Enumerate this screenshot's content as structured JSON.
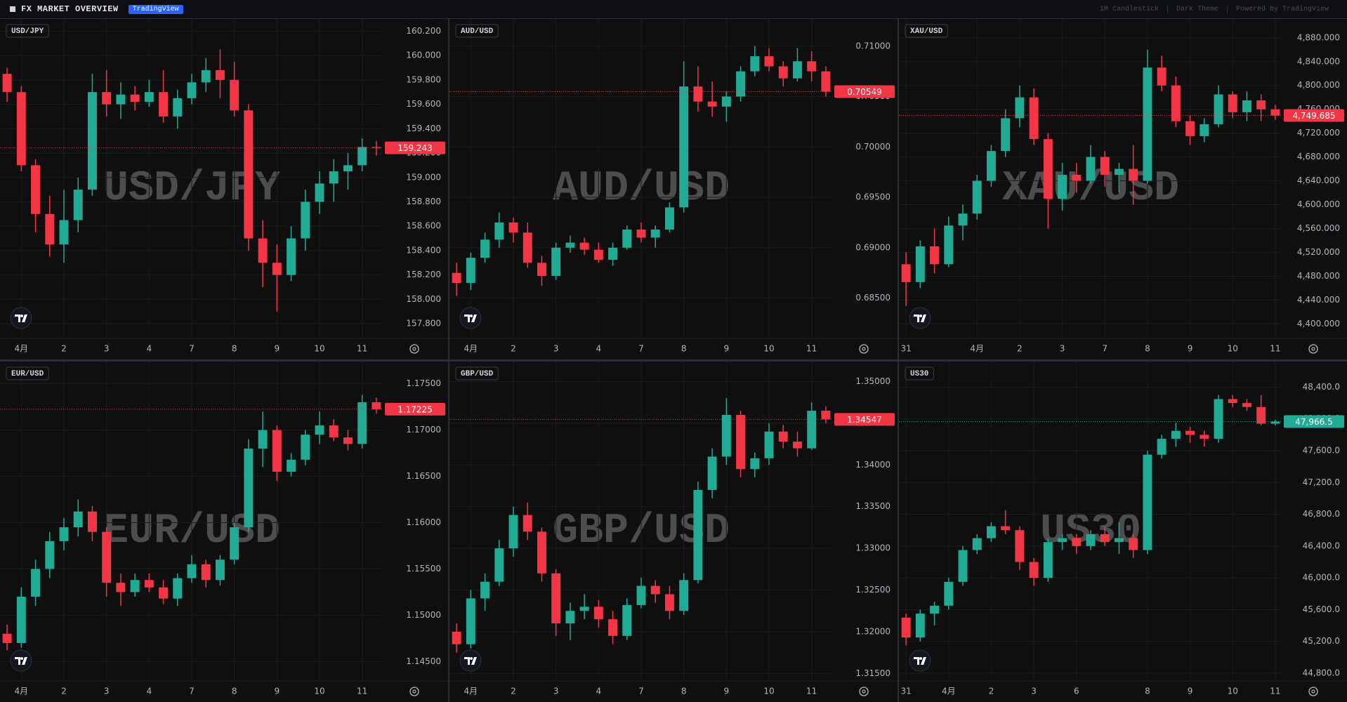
{
  "header": {
    "title": "FX MARKET OVERVIEW",
    "badge": "TradingView",
    "meta": [
      "1M Candlestick",
      "Dark Theme",
      "Powered by TradingView"
    ]
  },
  "chart_data": [
    {
      "type": "candlestick",
      "title": "USD/JPY",
      "up_color": "#22ab94",
      "down_color": "#f23645",
      "grid": true,
      "categories": [
        null,
        "4月",
        null,
        null,
        "2",
        null,
        null,
        "3",
        null,
        null,
        "4",
        null,
        null,
        "7",
        null,
        null,
        "8",
        null,
        null,
        "9",
        null,
        null,
        "10",
        null,
        null,
        "11",
        null
      ],
      "open": [
        159.85,
        159.7,
        159.1,
        158.7,
        158.45,
        158.65,
        158.9,
        159.7,
        159.6,
        159.68,
        159.62,
        159.7,
        159.5,
        159.65,
        159.78,
        159.88,
        159.8,
        159.55,
        158.5,
        158.3,
        158.2,
        158.5,
        158.8,
        158.95,
        159.05,
        159.1,
        159.25
      ],
      "high": [
        159.9,
        159.75,
        159.15,
        158.85,
        158.9,
        159.0,
        159.85,
        159.88,
        159.78,
        159.75,
        159.8,
        159.88,
        159.72,
        159.85,
        159.98,
        160.05,
        159.95,
        159.6,
        158.65,
        158.45,
        158.6,
        158.9,
        159.05,
        159.15,
        159.2,
        159.32,
        159.3
      ],
      "low": [
        159.62,
        159.05,
        158.55,
        158.35,
        158.3,
        158.55,
        158.85,
        159.5,
        159.48,
        159.55,
        159.58,
        159.45,
        159.4,
        159.6,
        159.7,
        159.65,
        159.5,
        158.4,
        158.1,
        157.9,
        158.15,
        158.4,
        158.7,
        158.8,
        158.9,
        159.05,
        159.18
      ],
      "close": [
        159.7,
        159.1,
        158.7,
        158.45,
        158.65,
        158.9,
        159.7,
        159.6,
        159.68,
        159.62,
        159.7,
        159.5,
        159.65,
        159.78,
        159.88,
        159.8,
        159.55,
        158.5,
        158.3,
        158.2,
        158.5,
        158.8,
        158.95,
        159.05,
        159.1,
        159.25,
        159.243
      ],
      "last_price": {
        "value": 159.243,
        "label": "159.243"
      },
      "ylim": [
        157.68,
        160.3
      ],
      "yticks": [
        {
          "value": 157.8,
          "label": "157.800"
        },
        {
          "value": 158.0,
          "label": "158.000"
        },
        {
          "value": 158.2,
          "label": "158.200"
        },
        {
          "value": 158.4,
          "label": "158.400"
        },
        {
          "value": 158.6,
          "label": "158.600"
        },
        {
          "value": 158.8,
          "label": "158.800"
        },
        {
          "value": 159.0,
          "label": "159.000"
        },
        {
          "value": 159.2,
          "label": "159.200"
        },
        {
          "value": 159.4,
          "label": "159.400"
        },
        {
          "value": 159.6,
          "label": "159.600"
        },
        {
          "value": 159.8,
          "label": "159.800"
        },
        {
          "value": 160.0,
          "label": "160.000"
        },
        {
          "value": 160.2,
          "label": "160.200"
        }
      ]
    },
    {
      "type": "candlestick",
      "title": "AUD/USD",
      "up_color": "#22ab94",
      "down_color": "#f23645",
      "grid": true,
      "categories": [
        null,
        "4月",
        null,
        null,
        "2",
        null,
        null,
        "3",
        null,
        null,
        "4",
        null,
        null,
        "7",
        null,
        null,
        "8",
        null,
        null,
        "9",
        null,
        null,
        "10",
        null,
        null,
        "11",
        null
      ],
      "open": [
        0.6875,
        0.6865,
        0.689,
        0.6908,
        0.6925,
        0.6915,
        0.6885,
        0.6872,
        0.69,
        0.6905,
        0.6898,
        0.6888,
        0.69,
        0.6918,
        0.691,
        0.6918,
        0.694,
        0.706,
        0.7045,
        0.704,
        0.705,
        0.7075,
        0.709,
        0.708,
        0.7068,
        0.7085,
        0.7075
      ],
      "high": [
        0.6885,
        0.6895,
        0.6915,
        0.6935,
        0.693,
        0.6925,
        0.6892,
        0.6905,
        0.6912,
        0.691,
        0.6905,
        0.6905,
        0.6922,
        0.6925,
        0.6922,
        0.6945,
        0.7085,
        0.708,
        0.7065,
        0.7055,
        0.708,
        0.71,
        0.7098,
        0.7085,
        0.7098,
        0.7095,
        0.708
      ],
      "low": [
        0.6852,
        0.6858,
        0.6885,
        0.69,
        0.6905,
        0.688,
        0.6862,
        0.6868,
        0.6895,
        0.6893,
        0.6885,
        0.6882,
        0.6898,
        0.6905,
        0.69,
        0.6915,
        0.6935,
        0.7035,
        0.703,
        0.7025,
        0.7045,
        0.707,
        0.7075,
        0.706,
        0.7065,
        0.7065,
        0.705
      ],
      "close": [
        0.6865,
        0.689,
        0.6908,
        0.6925,
        0.6915,
        0.6885,
        0.6872,
        0.69,
        0.6905,
        0.6898,
        0.6888,
        0.69,
        0.6918,
        0.691,
        0.6918,
        0.694,
        0.706,
        0.7045,
        0.704,
        0.705,
        0.7075,
        0.709,
        0.708,
        0.7068,
        0.7085,
        0.7075,
        0.70549
      ],
      "last_price": {
        "value": 0.70549,
        "label": "0.70549"
      },
      "ylim": [
        0.681,
        0.7127
      ],
      "yticks": [
        {
          "value": 0.685,
          "label": "0.68500"
        },
        {
          "value": 0.69,
          "label": "0.69000"
        },
        {
          "value": 0.695,
          "label": "0.69500"
        },
        {
          "value": 0.7,
          "label": "0.70000"
        },
        {
          "value": 0.705,
          "label": "0.70500"
        },
        {
          "value": 0.71,
          "label": "0.71000"
        }
      ]
    },
    {
      "type": "candlestick",
      "title": "XAU/USD",
      "up_color": "#22ab94",
      "down_color": "#f23645",
      "grid": true,
      "categories": [
        "31",
        null,
        null,
        null,
        null,
        "4月",
        null,
        null,
        "2",
        null,
        null,
        "3",
        null,
        null,
        "7",
        null,
        null,
        "8",
        null,
        null,
        "9",
        null,
        null,
        "10",
        null,
        null,
        "11"
      ],
      "open": [
        4500,
        4470,
        4530,
        4500,
        4565,
        4585,
        4640,
        4690,
        4745,
        4780,
        4710,
        4610,
        4650,
        4640,
        4680,
        4650,
        4660,
        4640,
        4830,
        4800,
        4740,
        4715,
        4735,
        4785,
        4755,
        4775,
        4760
      ],
      "high": [
        4520,
        4540,
        4560,
        4580,
        4600,
        4650,
        4700,
        4760,
        4800,
        4795,
        4720,
        4670,
        4670,
        4700,
        4690,
        4670,
        4700,
        4860,
        4850,
        4815,
        4750,
        4745,
        4800,
        4790,
        4790,
        4785,
        4768
      ],
      "low": [
        4430,
        4460,
        4485,
        4495,
        4540,
        4575,
        4630,
        4680,
        4730,
        4700,
        4560,
        4590,
        4620,
        4635,
        4630,
        4620,
        4600,
        4635,
        4790,
        4730,
        4700,
        4705,
        4730,
        4745,
        4740,
        4740,
        4742
      ],
      "close": [
        4470,
        4530,
        4500,
        4565,
        4585,
        4640,
        4690,
        4745,
        4780,
        4710,
        4610,
        4650,
        4640,
        4680,
        4650,
        4660,
        4640,
        4830,
        4800,
        4740,
        4715,
        4735,
        4785,
        4755,
        4775,
        4760,
        4749.685
      ],
      "last_price": {
        "value": 4749.685,
        "label": "4,749.685"
      },
      "ylim": [
        4375.6,
        4911.6
      ],
      "yticks": [
        {
          "value": 4400,
          "label": "4,400.000"
        },
        {
          "value": 4440,
          "label": "4,440.000"
        },
        {
          "value": 4480,
          "label": "4,480.000"
        },
        {
          "value": 4520,
          "label": "4,520.000"
        },
        {
          "value": 4560,
          "label": "4,560.000"
        },
        {
          "value": 4600,
          "label": "4,600.000"
        },
        {
          "value": 4640,
          "label": "4,640.000"
        },
        {
          "value": 4680,
          "label": "4,680.000"
        },
        {
          "value": 4720,
          "label": "4,720.000"
        },
        {
          "value": 4760,
          "label": "4,760.000"
        },
        {
          "value": 4800,
          "label": "4,800.000"
        },
        {
          "value": 4840,
          "label": "4,840.000"
        },
        {
          "value": 4880,
          "label": "4,880.000"
        }
      ]
    },
    {
      "type": "candlestick",
      "title": "EUR/USD",
      "up_color": "#22ab94",
      "down_color": "#f23645",
      "grid": true,
      "categories": [
        null,
        "4月",
        null,
        null,
        "2",
        null,
        null,
        "3",
        null,
        null,
        "4",
        null,
        null,
        "7",
        null,
        null,
        "8",
        null,
        null,
        "9",
        null,
        null,
        "10",
        null,
        null,
        "11",
        null
      ],
      "open": [
        1.148,
        1.147,
        1.152,
        1.155,
        1.158,
        1.1595,
        1.1612,
        1.159,
        1.1535,
        1.1525,
        1.1538,
        1.153,
        1.1518,
        1.154,
        1.1555,
        1.1538,
        1.156,
        1.1595,
        1.168,
        1.17,
        1.1655,
        1.1668,
        1.1695,
        1.1705,
        1.1692,
        1.1685,
        1.173
      ],
      "high": [
        1.149,
        1.153,
        1.156,
        1.159,
        1.1605,
        1.1625,
        1.1618,
        1.1595,
        1.1545,
        1.1545,
        1.1545,
        1.1538,
        1.1545,
        1.1565,
        1.156,
        1.1565,
        1.16,
        1.169,
        1.172,
        1.1705,
        1.1675,
        1.17,
        1.172,
        1.1712,
        1.17,
        1.1738,
        1.1735
      ],
      "low": [
        1.1462,
        1.1465,
        1.151,
        1.154,
        1.157,
        1.1585,
        1.158,
        1.152,
        1.151,
        1.152,
        1.1525,
        1.1512,
        1.151,
        1.1535,
        1.153,
        1.1532,
        1.1555,
        1.159,
        1.166,
        1.1645,
        1.165,
        1.1662,
        1.1685,
        1.1688,
        1.1678,
        1.168,
        1.1718
      ],
      "close": [
        1.147,
        1.152,
        1.155,
        1.158,
        1.1595,
        1.1612,
        1.159,
        1.1535,
        1.1525,
        1.1538,
        1.153,
        1.1518,
        1.154,
        1.1555,
        1.1538,
        1.156,
        1.1595,
        1.168,
        1.17,
        1.1655,
        1.1668,
        1.1695,
        1.1705,
        1.1692,
        1.1685,
        1.173,
        1.17225
      ],
      "last_price": {
        "value": 1.17225,
        "label": "1.17225"
      },
      "ylim": [
        1.1429,
        1.1774
      ],
      "yticks": [
        {
          "value": 1.145,
          "label": "1.14500"
        },
        {
          "value": 1.15,
          "label": "1.15000"
        },
        {
          "value": 1.155,
          "label": "1.15500"
        },
        {
          "value": 1.16,
          "label": "1.16000"
        },
        {
          "value": 1.165,
          "label": "1.16500"
        },
        {
          "value": 1.17,
          "label": "1.17000"
        },
        {
          "value": 1.175,
          "label": "1.17500"
        }
      ]
    },
    {
      "type": "candlestick",
      "title": "GBP/USD",
      "up_color": "#22ab94",
      "down_color": "#f23645",
      "grid": true,
      "categories": [
        null,
        "4月",
        null,
        null,
        "2",
        null,
        null,
        "3",
        null,
        null,
        "4",
        null,
        null,
        "7",
        null,
        null,
        "8",
        null,
        null,
        "9",
        null,
        null,
        "10",
        null,
        null,
        "11",
        null
      ],
      "open": [
        1.32,
        1.3185,
        1.324,
        1.326,
        1.33,
        1.334,
        1.332,
        1.327,
        1.321,
        1.3225,
        1.323,
        1.3215,
        1.3195,
        1.3232,
        1.3255,
        1.3245,
        1.3225,
        1.3262,
        1.337,
        1.341,
        1.346,
        1.3395,
        1.3408,
        1.344,
        1.3428,
        1.342,
        1.3465
      ],
      "high": [
        1.321,
        1.325,
        1.327,
        1.331,
        1.335,
        1.3355,
        1.3325,
        1.3275,
        1.3235,
        1.3245,
        1.3238,
        1.3225,
        1.324,
        1.3265,
        1.3262,
        1.3255,
        1.327,
        1.338,
        1.342,
        1.348,
        1.3465,
        1.3415,
        1.345,
        1.3448,
        1.344,
        1.3475,
        1.347
      ],
      "low": [
        1.3175,
        1.318,
        1.3225,
        1.3255,
        1.329,
        1.331,
        1.326,
        1.3195,
        1.319,
        1.3215,
        1.3205,
        1.3185,
        1.319,
        1.3228,
        1.3235,
        1.3215,
        1.322,
        1.3258,
        1.336,
        1.34,
        1.3385,
        1.3385,
        1.34,
        1.342,
        1.341,
        1.3418,
        1.345
      ],
      "close": [
        1.3185,
        1.324,
        1.326,
        1.33,
        1.334,
        1.332,
        1.327,
        1.321,
        1.3225,
        1.323,
        1.3215,
        1.3195,
        1.3232,
        1.3255,
        1.3245,
        1.3225,
        1.3262,
        1.337,
        1.341,
        1.346,
        1.3395,
        1.3408,
        1.344,
        1.3428,
        1.342,
        1.3465,
        1.34547
      ],
      "last_price": {
        "value": 1.34547,
        "label": "1.34547"
      },
      "ylim": [
        1.3141,
        1.3524
      ],
      "yticks": [
        {
          "value": 1.315,
          "label": "1.31500"
        },
        {
          "value": 1.32,
          "label": "1.32000"
        },
        {
          "value": 1.325,
          "label": "1.32500"
        },
        {
          "value": 1.33,
          "label": "1.33000"
        },
        {
          "value": 1.335,
          "label": "1.33500"
        },
        {
          "value": 1.34,
          "label": "1.34000"
        },
        {
          "value": 1.345,
          "label": "1.34500"
        },
        {
          "value": 1.35,
          "label": "1.35000"
        }
      ]
    },
    {
      "type": "candlestick",
      "title": "US30",
      "up_color": "#22ab94",
      "down_color": "#f23645",
      "grid": true,
      "categories": [
        "31",
        null,
        null,
        "4月",
        null,
        null,
        "2",
        null,
        null,
        "3",
        null,
        null,
        "6",
        null,
        null,
        null,
        null,
        "8",
        null,
        null,
        "9",
        null,
        null,
        "10",
        null,
        null,
        "11"
      ],
      "open": [
        45500,
        45250,
        45550,
        45650,
        45950,
        46350,
        46500,
        46650,
        46600,
        46200,
        46000,
        46450,
        46500,
        46400,
        46550,
        46450,
        46500,
        46350,
        47550,
        47750,
        47850,
        47800,
        47750,
        48250,
        48200,
        48150,
        47940
      ],
      "high": [
        45550,
        45600,
        45700,
        46000,
        46400,
        46550,
        46700,
        46850,
        46650,
        46250,
        46500,
        46550,
        46550,
        46600,
        46650,
        46700,
        46550,
        47600,
        47800,
        47950,
        47900,
        47850,
        48300,
        48300,
        48250,
        48300,
        47990
      ],
      "low": [
        45150,
        45200,
        45400,
        45600,
        45900,
        46300,
        46450,
        46550,
        46100,
        45900,
        45950,
        46350,
        46300,
        46350,
        46400,
        46300,
        46250,
        46300,
        47500,
        47650,
        47700,
        47650,
        47700,
        48150,
        48100,
        47920,
        47920
      ],
      "close": [
        45250,
        45550,
        45650,
        45950,
        46350,
        46500,
        46650,
        46600,
        46200,
        46000,
        46450,
        46500,
        46400,
        46550,
        46450,
        46500,
        46350,
        47550,
        47750,
        47850,
        47800,
        47750,
        48250,
        48200,
        48150,
        47940,
        47966.5
      ],
      "last_price": {
        "value": 47966.5,
        "label": "47,966.5"
      },
      "ylim": [
        44703,
        48722
      ],
      "yticks": [
        {
          "value": 44800,
          "label": "44,800.0"
        },
        {
          "value": 45200,
          "label": "45,200.0"
        },
        {
          "value": 45600,
          "label": "45,600.0"
        },
        {
          "value": 46000,
          "label": "46,000.0"
        },
        {
          "value": 46400,
          "label": "46,400.0"
        },
        {
          "value": 46800,
          "label": "46,800.0"
        },
        {
          "value": 47200,
          "label": "47,200.0"
        },
        {
          "value": 47600,
          "label": "47,600.0"
        },
        {
          "value": 48000,
          "label": "48,000.0"
        },
        {
          "value": 48400,
          "label": "48,400.0"
        }
      ]
    }
  ]
}
